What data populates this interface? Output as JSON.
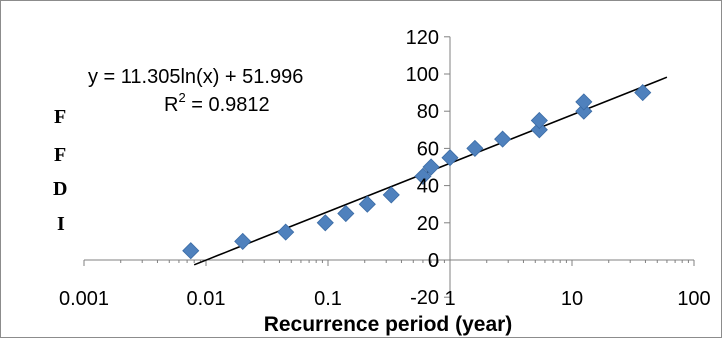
{
  "chart_data": {
    "type": "scatter",
    "title": "",
    "xlabel": "Recurrence period (year)",
    "ylabel_letters": [
      "F",
      "F",
      "D",
      "I"
    ],
    "x_scale": "log",
    "xlim": [
      0.001,
      100
    ],
    "ylim": [
      -20,
      120
    ],
    "x_tick_labels": [
      "0.001",
      "0.01",
      "0.1",
      "1",
      "10",
      "100"
    ],
    "x_ticks": [
      0.001,
      0.01,
      0.1,
      1,
      10,
      100
    ],
    "y_tick_labels": [
      "-20",
      "0",
      "20",
      "40",
      "60",
      "80",
      "100",
      "120"
    ],
    "y_ticks": [
      -20,
      0,
      20,
      40,
      60,
      80,
      100,
      120
    ],
    "grid": false,
    "legend": "none",
    "marker": "diamond",
    "colors": {
      "marker": "#4F81BD",
      "trendline": "#000000",
      "axis": "#808080"
    },
    "points": [
      {
        "x": 0.0075,
        "y": 5
      },
      {
        "x": 0.02,
        "y": 10
      },
      {
        "x": 0.045,
        "y": 15
      },
      {
        "x": 0.095,
        "y": 20
      },
      {
        "x": 0.14,
        "y": 25
      },
      {
        "x": 0.21,
        "y": 30
      },
      {
        "x": 0.33,
        "y": 35
      },
      {
        "x": 0.6,
        "y": 45
      },
      {
        "x": 0.7,
        "y": 50
      },
      {
        "x": 1.0,
        "y": 55
      },
      {
        "x": 1.6,
        "y": 60
      },
      {
        "x": 2.7,
        "y": 65
      },
      {
        "x": 5.4,
        "y": 70
      },
      {
        "x": 5.4,
        "y": 75
      },
      {
        "x": 12.5,
        "y": 80
      },
      {
        "x": 12.5,
        "y": 85
      },
      {
        "x": 38,
        "y": 90
      }
    ],
    "trendline": {
      "type": "logarithmic",
      "a": 11.305,
      "b": 51.996,
      "x_range": [
        0.008,
        60
      ],
      "equation_label": "y = 11.305ln(x) + 51.996",
      "r2_prefix": "R",
      "r2_exp": "2",
      "r2_value": " = 0.9812"
    }
  }
}
